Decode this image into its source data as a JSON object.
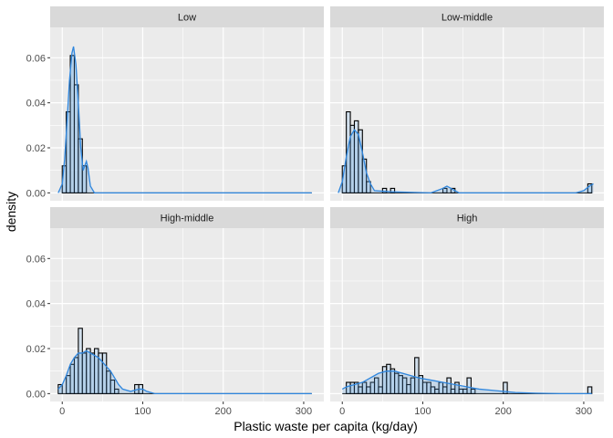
{
  "chart_data": {
    "type": "histogram",
    "xlabel": "Plastic waste per capita (kg/day)",
    "ylabel": "density",
    "xlim": [
      -15,
      325
    ],
    "ylim": [
      -0.0035,
      0.0735
    ],
    "x_ticks": [
      0,
      100,
      200,
      300
    ],
    "x_tick_labels": [
      "0",
      "100",
      "200",
      "300"
    ],
    "y_ticks": [
      0,
      0.02,
      0.04,
      0.06
    ],
    "y_tick_labels": [
      "0.00",
      "0.02",
      "0.04",
      "0.06"
    ],
    "bin_width": 5,
    "grid": true,
    "legend": "none",
    "colors": {
      "panel_bg": "#ebebeb",
      "strip_bg": "#d9d9d9",
      "grid": "#ffffff",
      "bar_fill": "#bdd7ee",
      "bar_stroke": "#000000",
      "density_line": "#2e86de",
      "density_fill": "#5aa0e0"
    },
    "panels": [
      {
        "label": "Low",
        "bins": [
          [
            0,
            0.012
          ],
          [
            5,
            0.036
          ],
          [
            10,
            0.061
          ],
          [
            15,
            0.048
          ],
          [
            20,
            0.024
          ],
          [
            25,
            0.012
          ],
          [
            30,
            0.0
          ]
        ],
        "density": [
          [
            -5,
            0
          ],
          [
            0,
            0.004
          ],
          [
            3,
            0.015
          ],
          [
            6,
            0.032
          ],
          [
            9,
            0.05
          ],
          [
            12,
            0.062
          ],
          [
            14,
            0.065
          ],
          [
            17,
            0.057
          ],
          [
            20,
            0.04
          ],
          [
            23,
            0.02
          ],
          [
            26,
            0.01
          ],
          [
            28,
            0.012
          ],
          [
            30,
            0.014
          ],
          [
            32,
            0.011
          ],
          [
            35,
            0.003
          ],
          [
            40,
            0.0
          ],
          [
            310,
            0.0
          ]
        ]
      },
      {
        "label": "Low-middle",
        "bins": [
          [
            0,
            0.012
          ],
          [
            5,
            0.036
          ],
          [
            10,
            0.03
          ],
          [
            15,
            0.032
          ],
          [
            20,
            0.028
          ],
          [
            25,
            0.015
          ],
          [
            30,
            0.005
          ],
          [
            35,
            0.0
          ],
          [
            40,
            0.0
          ],
          [
            45,
            0.0
          ],
          [
            50,
            0.002
          ],
          [
            60,
            0.002
          ],
          [
            125,
            0.002
          ],
          [
            135,
            0.002
          ],
          [
            305,
            0.004
          ]
        ],
        "density": [
          [
            -5,
            0
          ],
          [
            0,
            0.005
          ],
          [
            5,
            0.016
          ],
          [
            10,
            0.025
          ],
          [
            15,
            0.028
          ],
          [
            20,
            0.026
          ],
          [
            25,
            0.018
          ],
          [
            30,
            0.009
          ],
          [
            35,
            0.004
          ],
          [
            40,
            0.001
          ],
          [
            60,
            0.0005
          ],
          [
            110,
            0.0
          ],
          [
            125,
            0.002
          ],
          [
            130,
            0.003
          ],
          [
            135,
            0.002
          ],
          [
            145,
            0.0
          ],
          [
            290,
            0.0
          ],
          [
            300,
            0.001
          ],
          [
            307,
            0.003
          ],
          [
            312,
            0.004
          ]
        ]
      },
      {
        "label": "High-middle",
        "bins": [
          [
            -5,
            0.004
          ],
          [
            5,
            0.008
          ],
          [
            10,
            0.013
          ],
          [
            15,
            0.016
          ],
          [
            20,
            0.029
          ],
          [
            25,
            0.018
          ],
          [
            30,
            0.02
          ],
          [
            35,
            0.018
          ],
          [
            40,
            0.02
          ],
          [
            45,
            0.018
          ],
          [
            50,
            0.018
          ],
          [
            55,
            0.01
          ],
          [
            60,
            0.006
          ],
          [
            65,
            0.002
          ],
          [
            70,
            0.0
          ],
          [
            75,
            0.0
          ],
          [
            80,
            0.0
          ],
          [
            85,
            0.0
          ],
          [
            90,
            0.004
          ],
          [
            95,
            0.004
          ]
        ],
        "density": [
          [
            -5,
            0.002
          ],
          [
            0,
            0.004
          ],
          [
            5,
            0.008
          ],
          [
            10,
            0.013
          ],
          [
            15,
            0.016
          ],
          [
            20,
            0.018
          ],
          [
            25,
            0.018
          ],
          [
            30,
            0.019
          ],
          [
            35,
            0.018
          ],
          [
            40,
            0.017
          ],
          [
            45,
            0.016
          ],
          [
            50,
            0.014
          ],
          [
            55,
            0.012
          ],
          [
            60,
            0.01
          ],
          [
            65,
            0.007
          ],
          [
            70,
            0.004
          ],
          [
            75,
            0.002
          ],
          [
            85,
            0.001
          ],
          [
            95,
            0.002
          ],
          [
            100,
            0.002
          ],
          [
            105,
            0.001
          ],
          [
            115,
            0.0
          ],
          [
            310,
            0.0
          ]
        ]
      },
      {
        "label": "High",
        "bins": [
          [
            5,
            0.005
          ],
          [
            10,
            0.005
          ],
          [
            15,
            0.005
          ],
          [
            20,
            0.003
          ],
          [
            25,
            0.005
          ],
          [
            30,
            0.003
          ],
          [
            35,
            0.005
          ],
          [
            40,
            0.007
          ],
          [
            45,
            0.003
          ],
          [
            50,
            0.012
          ],
          [
            55,
            0.013
          ],
          [
            60,
            0.011
          ],
          [
            65,
            0.009
          ],
          [
            70,
            0.008
          ],
          [
            75,
            0.007
          ],
          [
            80,
            0.004
          ],
          [
            85,
            0.007
          ],
          [
            90,
            0.016
          ],
          [
            95,
            0.008
          ],
          [
            100,
            0.005
          ],
          [
            105,
            0.005
          ],
          [
            110,
            0.003
          ],
          [
            115,
            0.002
          ],
          [
            120,
            0.005
          ],
          [
            125,
            0.003
          ],
          [
            130,
            0.007
          ],
          [
            135,
            0.002
          ],
          [
            140,
            0.005
          ],
          [
            145,
            0.002
          ],
          [
            150,
            0.002
          ],
          [
            155,
            0.007
          ],
          [
            160,
            0.002
          ],
          [
            200,
            0.005
          ],
          [
            305,
            0.003
          ]
        ],
        "density": [
          [
            0,
            0.002
          ],
          [
            5,
            0.003
          ],
          [
            15,
            0.004
          ],
          [
            25,
            0.005
          ],
          [
            35,
            0.007
          ],
          [
            45,
            0.009
          ],
          [
            55,
            0.01
          ],
          [
            65,
            0.01
          ],
          [
            75,
            0.009
          ],
          [
            85,
            0.008
          ],
          [
            95,
            0.007
          ],
          [
            110,
            0.006
          ],
          [
            125,
            0.005
          ],
          [
            140,
            0.004
          ],
          [
            155,
            0.003
          ],
          [
            170,
            0.002
          ],
          [
            185,
            0.0015
          ],
          [
            200,
            0.001
          ],
          [
            215,
            0.0005
          ],
          [
            240,
            0.0002
          ],
          [
            270,
            0.0
          ],
          [
            310,
            0.0
          ]
        ]
      }
    ]
  }
}
